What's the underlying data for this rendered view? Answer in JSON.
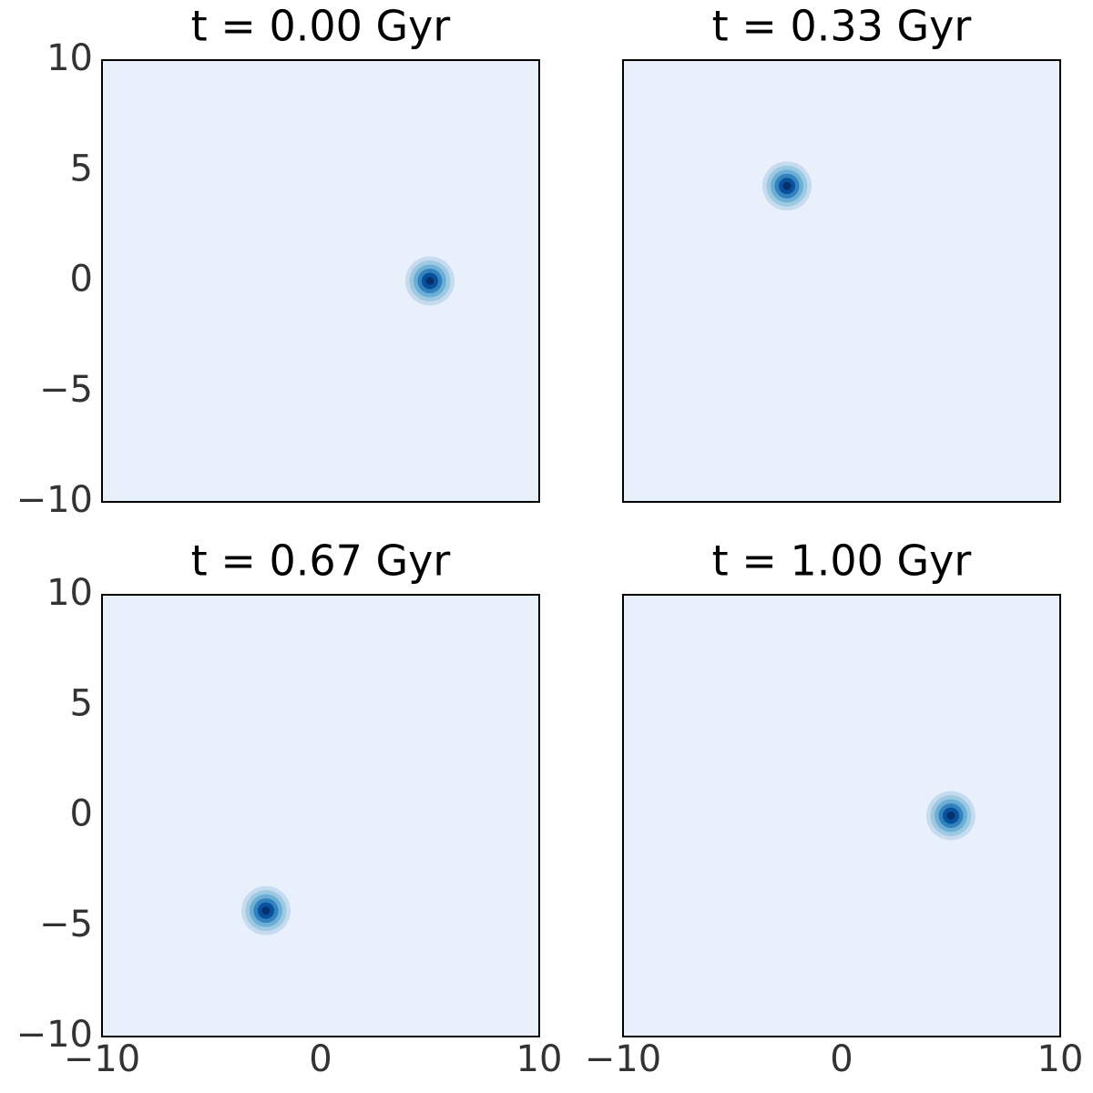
{
  "chart_data": [
    {
      "type": "contour",
      "title": "t = 0.00 Gyr",
      "x": [
        5
      ],
      "y": [
        0
      ],
      "xlim": [
        -10,
        10
      ],
      "ylim": [
        -10,
        10
      ],
      "yticks": [
        {
          "value": -10,
          "label": "−10"
        },
        {
          "value": -5,
          "label": "−5"
        },
        0,
        5,
        10
      ],
      "background": "#e8f1fb",
      "colors": [
        "#c6dbef",
        "#9ecae1",
        "#6baed6",
        "#3182bd",
        "#08519c",
        "#08306b"
      ]
    },
    {
      "type": "contour",
      "title": "t = 0.33 Gyr",
      "x": [
        -2.5
      ],
      "y": [
        4.3
      ],
      "xlim": [
        -10,
        10
      ],
      "ylim": [
        -10,
        10
      ],
      "background": "#e8f1fb",
      "colors": [
        "#c6dbef",
        "#9ecae1",
        "#6baed6",
        "#3182bd",
        "#08519c",
        "#08306b"
      ]
    },
    {
      "type": "contour",
      "title": "t = 0.67 Gyr",
      "x": [
        -2.5
      ],
      "y": [
        -4.3
      ],
      "xlim": [
        -10,
        10
      ],
      "ylim": [
        -10,
        10
      ],
      "xticks": [
        {
          "value": -10,
          "label": "−10"
        },
        0,
        10
      ],
      "yticks": [
        {
          "value": -10,
          "label": "−10"
        },
        {
          "value": -5,
          "label": "−5"
        },
        0,
        5,
        10
      ],
      "background": "#e8f1fb",
      "colors": [
        "#c6dbef",
        "#9ecae1",
        "#6baed6",
        "#3182bd",
        "#08519c",
        "#08306b"
      ]
    },
    {
      "type": "contour",
      "title": "t = 1.00 Gyr",
      "x": [
        5
      ],
      "y": [
        0
      ],
      "xlim": [
        -10,
        10
      ],
      "ylim": [
        -10,
        10
      ],
      "xticks": [
        {
          "value": -10,
          "label": "−10"
        },
        0,
        10
      ],
      "background": "#e8f1fb",
      "colors": [
        "#c6dbef",
        "#9ecae1",
        "#6baed6",
        "#3182bd",
        "#08519c",
        "#08306b"
      ]
    }
  ]
}
